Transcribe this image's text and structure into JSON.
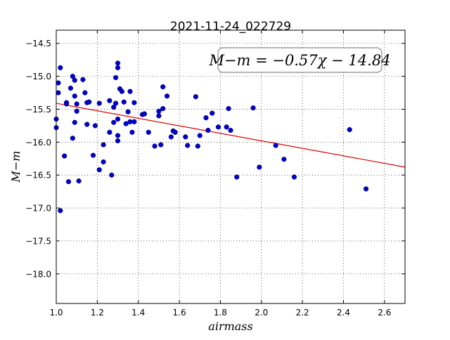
{
  "chart_data": {
    "type": "scatter",
    "title": "2021-11-24_022729",
    "xlabel": "airmass",
    "ylabel": "M−m",
    "xlim": [
      1.0,
      2.7
    ],
    "ylim": [
      -18.45,
      -14.3
    ],
    "y_inverted": true,
    "grid": true,
    "xticks": [
      "1.0",
      "1.2",
      "1.4",
      "1.6",
      "1.8",
      "2.0",
      "2.2",
      "2.4",
      "2.6"
    ],
    "xtick_values": [
      1.0,
      1.2,
      1.4,
      1.6,
      1.8,
      2.0,
      2.2,
      2.4,
      2.6
    ],
    "yticks": [
      "−14.5",
      "−15.0",
      "−15.5",
      "−16.0",
      "−16.5",
      "−17.0",
      "−17.5",
      "−18.0"
    ],
    "ytick_values": [
      -14.5,
      -15.0,
      -15.5,
      -16.0,
      -16.5,
      -17.0,
      -17.5,
      -18.0
    ],
    "annotation": "M−m = −0.57χ − 14.84",
    "fit": {
      "slope": -0.57,
      "intercept": -14.84,
      "color": "#dd0000"
    },
    "point_color": "#0000cc",
    "points": [
      {
        "x": 1.0,
        "y": -15.65
      },
      {
        "x": 1.0,
        "y": -15.78
      },
      {
        "x": 1.01,
        "y": -15.1
      },
      {
        "x": 1.01,
        "y": -15.25
      },
      {
        "x": 1.02,
        "y": -14.87
      },
      {
        "x": 1.02,
        "y": -17.04
      },
      {
        "x": 1.04,
        "y": -16.21
      },
      {
        "x": 1.05,
        "y": -15.42
      },
      {
        "x": 1.05,
        "y": -15.4
      },
      {
        "x": 1.06,
        "y": -16.6
      },
      {
        "x": 1.07,
        "y": -15.18
      },
      {
        "x": 1.08,
        "y": -15.94
      },
      {
        "x": 1.08,
        "y": -15.0
      },
      {
        "x": 1.09,
        "y": -15.06
      },
      {
        "x": 1.09,
        "y": -15.3
      },
      {
        "x": 1.1,
        "y": -15.42
      },
      {
        "x": 1.1,
        "y": -15.53
      },
      {
        "x": 1.09,
        "y": -15.7
      },
      {
        "x": 1.11,
        "y": -16.59
      },
      {
        "x": 1.13,
        "y": -15.05
      },
      {
        "x": 1.14,
        "y": -15.25
      },
      {
        "x": 1.15,
        "y": -15.4
      },
      {
        "x": 1.15,
        "y": -15.73
      },
      {
        "x": 1.16,
        "y": -15.39
      },
      {
        "x": 1.18,
        "y": -16.2
      },
      {
        "x": 1.19,
        "y": -15.75
      },
      {
        "x": 1.21,
        "y": -16.42
      },
      {
        "x": 1.21,
        "y": -15.41
      },
      {
        "x": 1.23,
        "y": -16.3
      },
      {
        "x": 1.23,
        "y": -16.04
      },
      {
        "x": 1.26,
        "y": -15.37
      },
      {
        "x": 1.26,
        "y": -15.85
      },
      {
        "x": 1.27,
        "y": -16.5
      },
      {
        "x": 1.28,
        "y": -15.47
      },
      {
        "x": 1.28,
        "y": -15.7
      },
      {
        "x": 1.29,
        "y": -15.02
      },
      {
        "x": 1.29,
        "y": -15.41
      },
      {
        "x": 1.3,
        "y": -14.8
      },
      {
        "x": 1.3,
        "y": -14.87
      },
      {
        "x": 1.3,
        "y": -15.65
      },
      {
        "x": 1.3,
        "y": -15.9
      },
      {
        "x": 1.3,
        "y": -15.98
      },
      {
        "x": 1.31,
        "y": -15.19
      },
      {
        "x": 1.32,
        "y": -15.23
      },
      {
        "x": 1.33,
        "y": -15.39
      },
      {
        "x": 1.34,
        "y": -15.72
      },
      {
        "x": 1.35,
        "y": -15.54
      },
      {
        "x": 1.36,
        "y": -15.23
      },
      {
        "x": 1.36,
        "y": -15.69
      },
      {
        "x": 1.37,
        "y": -15.85
      },
      {
        "x": 1.38,
        "y": -15.4
      },
      {
        "x": 1.38,
        "y": -15.69
      },
      {
        "x": 1.42,
        "y": -15.58
      },
      {
        "x": 1.43,
        "y": -15.57
      },
      {
        "x": 1.45,
        "y": -15.85
      },
      {
        "x": 1.48,
        "y": -16.06
      },
      {
        "x": 1.5,
        "y": -15.53
      },
      {
        "x": 1.5,
        "y": -15.6
      },
      {
        "x": 1.51,
        "y": -16.04
      },
      {
        "x": 1.52,
        "y": -15.16
      },
      {
        "x": 1.52,
        "y": -15.49
      },
      {
        "x": 1.54,
        "y": -15.3
      },
      {
        "x": 1.56,
        "y": -15.92
      },
      {
        "x": 1.57,
        "y": -15.83
      },
      {
        "x": 1.58,
        "y": -15.85
      },
      {
        "x": 1.63,
        "y": -15.92
      },
      {
        "x": 1.64,
        "y": -16.05
      },
      {
        "x": 1.68,
        "y": -15.31
      },
      {
        "x": 1.69,
        "y": -16.06
      },
      {
        "x": 1.7,
        "y": -15.9
      },
      {
        "x": 1.73,
        "y": -15.63
      },
      {
        "x": 1.74,
        "y": -15.82
      },
      {
        "x": 1.76,
        "y": -15.56
      },
      {
        "x": 1.79,
        "y": -15.77
      },
      {
        "x": 1.83,
        "y": -15.77
      },
      {
        "x": 1.84,
        "y": -15.49
      },
      {
        "x": 1.85,
        "y": -15.82
      },
      {
        "x": 1.88,
        "y": -16.53
      },
      {
        "x": 1.96,
        "y": -15.48
      },
      {
        "x": 1.99,
        "y": -16.38
      },
      {
        "x": 2.07,
        "y": -16.05
      },
      {
        "x": 2.11,
        "y": -16.26
      },
      {
        "x": 2.16,
        "y": -16.53
      },
      {
        "x": 2.43,
        "y": -15.81
      },
      {
        "x": 2.51,
        "y": -16.71
      }
    ]
  }
}
